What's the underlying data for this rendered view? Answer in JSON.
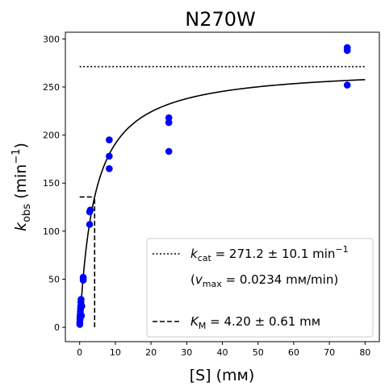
{
  "chart_data": {
    "type": "scatter",
    "title": "N270W",
    "xlabel": {
      "base": "[S] (mм)"
    },
    "ylabel": {
      "base": "k",
      "sub": "obs",
      "rest": " (min",
      "sup": "−1",
      "close": ")"
    },
    "xlim": [
      -4,
      84
    ],
    "ylim": [
      -15,
      307
    ],
    "x_ticks": [
      0,
      10,
      20,
      30,
      40,
      50,
      60,
      70,
      80
    ],
    "y_ticks": [
      0,
      50,
      100,
      150,
      200,
      250,
      300
    ],
    "points": {
      "color": "#0000ff",
      "x": [
        0.05,
        0.05,
        0.1,
        0.1,
        0.15,
        0.2,
        0.25,
        0.3,
        0.35,
        0.4,
        0.5,
        0.6,
        1.0,
        1.0,
        1.0,
        2.8,
        2.8,
        3.0,
        8.3,
        8.3,
        8.3,
        25,
        25,
        25,
        75,
        75,
        75
      ],
      "y": [
        3,
        5,
        8,
        10,
        13,
        16,
        19,
        22,
        26,
        29,
        12,
        22,
        49,
        51,
        52,
        107,
        120,
        122,
        165,
        178,
        195,
        183,
        213,
        218,
        252,
        288,
        291
      ]
    },
    "fit": {
      "kcat": 271.2,
      "km": 4.2,
      "x_range": [
        0,
        80
      ],
      "color": "#000000"
    },
    "kcat_line": {
      "y": 271.2,
      "x_range": [
        0,
        80
      ]
    },
    "km_lines": {
      "x": 4.2,
      "y": 135.6,
      "h_from_x": 0
    },
    "legend": {
      "placement": "lower-right",
      "entries": [
        {
          "style": "dotted",
          "var": "k",
          "sub": "cat",
          "text": " = 271.2 ± 10.1 min",
          "sup": "−1"
        },
        {
          "style": "none",
          "prefix": "(",
          "var": "v",
          "sub": "max",
          "text": " = 0.0234 mм/min)"
        },
        {
          "style": "dashed",
          "var": "K",
          "sub": "M",
          "text": " = 4.20 ± 0.61 mм"
        }
      ]
    }
  }
}
